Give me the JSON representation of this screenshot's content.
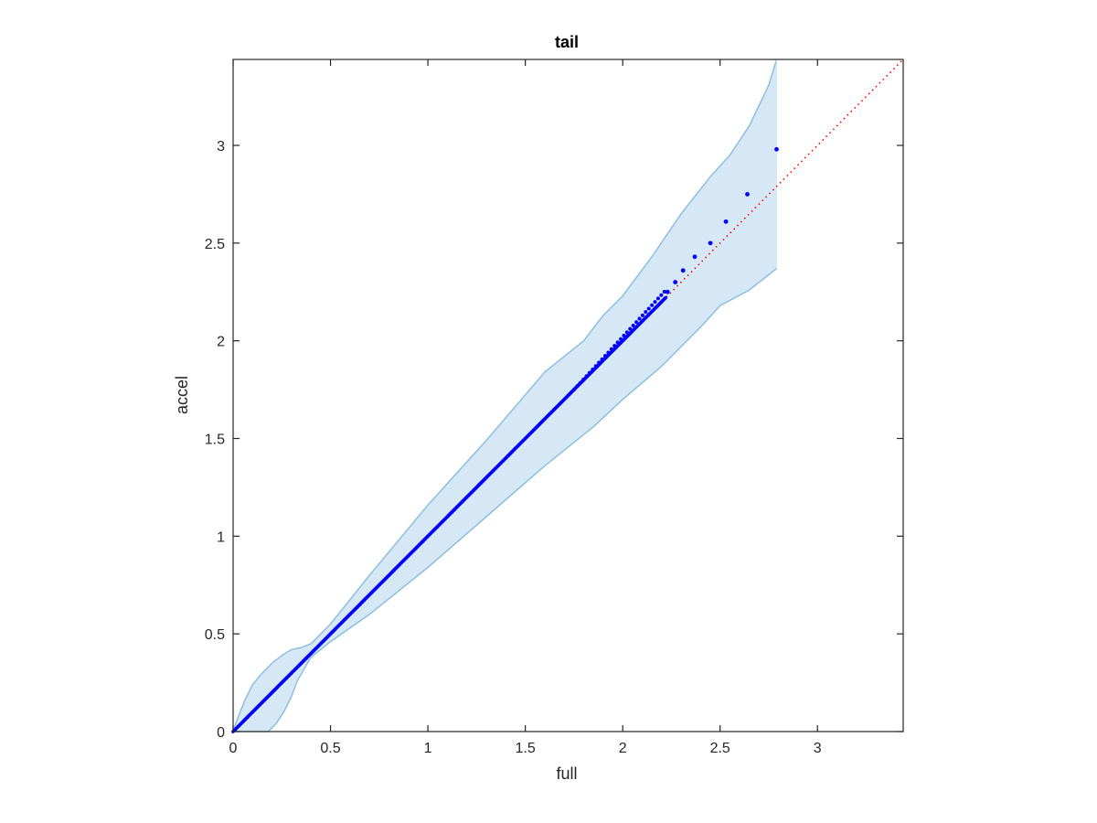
{
  "chart_data": {
    "type": "scatter",
    "title": "tail",
    "xlabel": "full",
    "ylabel": "accel",
    "xlim": [
      0,
      3.44
    ],
    "ylim": [
      0,
      3.44
    ],
    "xticks": [
      0,
      0.5,
      1,
      1.5,
      2,
      2.5,
      3
    ],
    "yticks": [
      0,
      0.5,
      1,
      1.5,
      2,
      2.5,
      3
    ],
    "xtick_labels": [
      "0",
      "0.5",
      "1",
      "1.5",
      "2",
      "2.5",
      "3"
    ],
    "ytick_labels": [
      "0",
      "0.5",
      "1",
      "1.5",
      "2",
      "2.5",
      "3"
    ],
    "grid": false,
    "reference_line": {
      "x": [
        0,
        3.44
      ],
      "y": [
        0,
        3.44
      ],
      "style": "dotted",
      "color": "#ff0000"
    },
    "points": {
      "color": "#0000ff",
      "x": [
        2.23,
        2.27,
        2.31,
        2.37,
        2.45,
        2.53,
        2.64,
        2.79
      ],
      "y": [
        2.25,
        2.3,
        2.36,
        2.43,
        2.5,
        2.61,
        2.75,
        2.98
      ]
    },
    "dense_points": {
      "x_range": [
        0,
        2.22
      ],
      "color": "#0000ff"
    },
    "band": {
      "fill": "#d6e8f5",
      "edge": "#8dbfdd",
      "upper": {
        "x": [
          0,
          0.02,
          0.06,
          0.1,
          0.15,
          0.2,
          0.25,
          0.3,
          0.35,
          0.4,
          0.5,
          0.7,
          1.0,
          1.3,
          1.6,
          1.8,
          1.9,
          2.0,
          2.15,
          2.3,
          2.45,
          2.55,
          2.65,
          2.75,
          2.79
        ],
        "y": [
          0,
          0.06,
          0.16,
          0.24,
          0.3,
          0.35,
          0.39,
          0.42,
          0.43,
          0.45,
          0.55,
          0.8,
          1.16,
          1.49,
          1.84,
          2.0,
          2.13,
          2.23,
          2.43,
          2.65,
          2.84,
          2.95,
          3.1,
          3.31,
          3.44
        ]
      },
      "lower": {
        "x": [
          0,
          0.05,
          0.1,
          0.15,
          0.18,
          0.22,
          0.26,
          0.3,
          0.33,
          0.37,
          0.4,
          0.5,
          0.7,
          1.0,
          1.3,
          1.6,
          1.85,
          2.0,
          2.2,
          2.4,
          2.5,
          2.65,
          2.79
        ],
        "y": [
          0,
          0,
          0,
          0,
          0,
          0.04,
          0.1,
          0.18,
          0.26,
          0.33,
          0.38,
          0.46,
          0.6,
          0.84,
          1.1,
          1.36,
          1.56,
          1.7,
          1.87,
          2.07,
          2.18,
          2.26,
          2.37
        ]
      }
    }
  }
}
